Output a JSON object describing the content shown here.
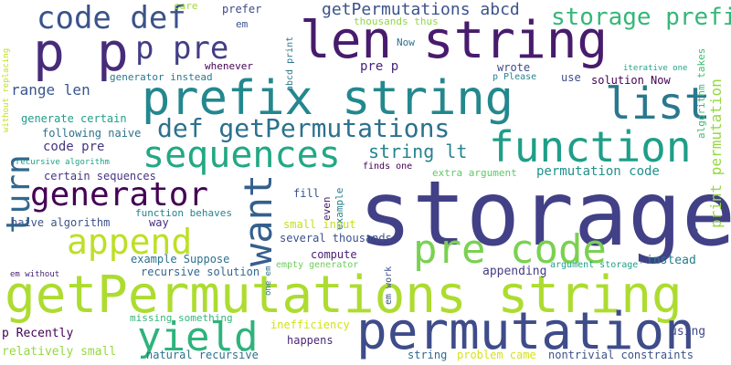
{
  "words": {
    "storage": {
      "text": "storage",
      "color": "#424086"
    },
    "getPermutations_string": {
      "text": "getPermutations string",
      "color": "#addc30"
    },
    "prefix_string": {
      "text": "prefix string",
      "color": "#23888e"
    },
    "len_string": {
      "text": "len string",
      "color": "#481b6d"
    },
    "permutation": {
      "text": "permutation",
      "color": "#3e4c8a"
    },
    "function": {
      "text": "function",
      "color": "#1f9e89"
    },
    "p_p": {
      "text": "p p",
      "color": "#472c7a"
    },
    "code_def": {
      "text": "code def",
      "color": "#3b528b"
    },
    "generator": {
      "text": "generator",
      "color": "#440154"
    },
    "sequences": {
      "text": "sequences",
      "color": "#22a884"
    },
    "def_getPermutations": {
      "text": "def getPermutations",
      "color": "#2c718e"
    },
    "pre_code": {
      "text": "pre code",
      "color": "#7ad151"
    },
    "append": {
      "text": "append",
      "color": "#bddf26"
    },
    "yield": {
      "text": "yield",
      "color": "#2eb37c"
    },
    "list": {
      "text": "list",
      "color": "#2a788e"
    },
    "p_pre": {
      "text": "p pre",
      "color": "#433e85"
    },
    "want": {
      "text": "want",
      "color": "#355f8d"
    },
    "turn": {
      "text": "turn",
      "color": "#31688e"
    },
    "storage_prefix": {
      "text": "storage prefix",
      "color": "#35b779"
    },
    "getPermutations_abcd": {
      "text": "getPermutations abcd",
      "color": "#3b528b"
    },
    "range_len": {
      "text": "range len",
      "color": "#39568c"
    },
    "string_lt": {
      "text": "string lt",
      "color": "#25848e"
    },
    "permutation_code": {
      "text": "permutation code",
      "color": "#21918c"
    },
    "print_permutation": {
      "text": "print permutation",
      "color": "#95d840"
    },
    "code_pre": {
      "text": "code pre",
      "color": "#453781"
    },
    "pre_p": {
      "text": "pre p",
      "color": "#482475"
    },
    "thousands_thus": {
      "text": "thousands thus",
      "color": "#8fd744"
    },
    "prefer": {
      "text": "prefer",
      "color": "#3e4989"
    },
    "care": {
      "text": "care",
      "color": "#9dd93b"
    },
    "em": {
      "text": "em",
      "color": "#3b528b"
    },
    "Now": {
      "text": "Now",
      "color": "#2d708e"
    },
    "whenever": {
      "text": "whenever",
      "color": "#440154"
    },
    "generator_instead": {
      "text": "generator instead",
      "color": "#2a788e"
    },
    "wrote": {
      "text": "wrote",
      "color": "#3e4a89"
    },
    "p_Please": {
      "text": "p Please",
      "color": "#25848e"
    },
    "use": {
      "text": "use",
      "color": "#3e4c8a"
    },
    "solution_Now": {
      "text": "solution Now",
      "color": "#440154"
    },
    "iterative_one": {
      "text": "iterative one",
      "color": "#21a685"
    },
    "algorithm_takes": {
      "text": "algorithm takes",
      "color": "#3dbc74"
    },
    "generate_certain": {
      "text": "generate certain",
      "color": "#1f9e89"
    },
    "following_naive": {
      "text": "following naive",
      "color": "#2c728e"
    },
    "recursive_algorithm": {
      "text": "recursive algorithm",
      "color": "#1fa187"
    },
    "certain_sequences": {
      "text": "certain sequences",
      "color": "#453581"
    },
    "finds_one": {
      "text": "finds one",
      "color": "#440154"
    },
    "extra_argument": {
      "text": "extra argument",
      "color": "#5ec962"
    },
    "fill": {
      "text": "fill",
      "color": "#3b528b"
    },
    "even": {
      "text": "even",
      "color": "#481b6d"
    },
    "example": {
      "text": "example",
      "color": "#27808e"
    },
    "function_behaves": {
      "text": "function behaves",
      "color": "#26828e"
    },
    "naive_algorithm": {
      "text": "naive algorithm",
      "color": "#3b528b"
    },
    "way": {
      "text": "way",
      "color": "#46307e"
    },
    "small_input": {
      "text": "small input",
      "color": "#c5e021"
    },
    "e": {
      "text": "e",
      "color": "#3e4c8a"
    },
    "several_thousands": {
      "text": "several thousands",
      "color": "#3b518b"
    },
    "compute": {
      "text": "compute",
      "color": "#481f70"
    },
    "example_Suppose": {
      "text": "example Suppose",
      "color": "#2c728e"
    },
    "instead": {
      "text": "instead",
      "color": "#287c8e"
    },
    "recursive_solution": {
      "text": "recursive solution",
      "color": "#31678e"
    },
    "empty_generator": {
      "text": "empty generator",
      "color": "#6ccd5a"
    },
    "appending": {
      "text": "appending",
      "color": "#433d84"
    },
    "argument_storage": {
      "text": "argument storage'",
      "color": "#1fa088"
    },
    "em_without": {
      "text": "em without",
      "color": "#482475"
    },
    "one_em": {
      "text": "one em",
      "color": "#2c728e"
    },
    "em_work": {
      "text": "em work",
      "color": "#3b528b"
    },
    "missing_something": {
      "text": "missing something",
      "color": "#32b67a"
    },
    "p_Recently": {
      "text": "p Recently",
      "color": "#440154"
    },
    "inefficiency": {
      "text": "inefficiency",
      "color": "#d2e21b"
    },
    "using": {
      "text": "using",
      "color": "#3e4a89"
    },
    "happens": {
      "text": "happens",
      "color": "#482777"
    },
    "relatively_small": {
      "text": "relatively small",
      "color": "#95d840"
    },
    "natural_recursive": {
      "text": "natural recursive",
      "color": "#2c728e"
    },
    "string": {
      "text": "string",
      "color": "#2f6b8e"
    },
    "problem_came": {
      "text": "problem came",
      "color": "#d8e219"
    },
    "nontrivial_constraints": {
      "text": "nontrivial constraints",
      "color": "#3b528b"
    },
    "without_replacing": {
      "text": "without replacing",
      "color": "#c0df25"
    },
    "abcd_print": {
      "text": "abcd print",
      "color": "#2a788e"
    }
  }
}
